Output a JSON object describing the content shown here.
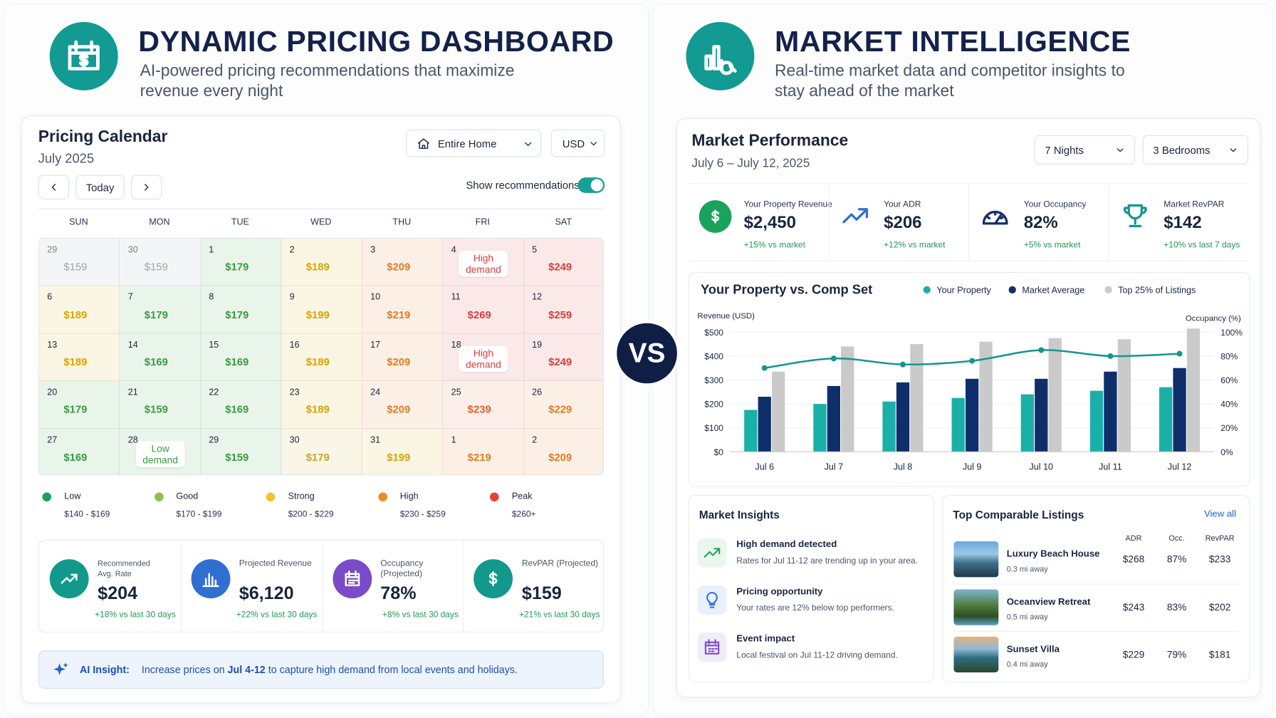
{
  "left": {
    "title": "DYNAMIC PRICING DASHBOARD",
    "subtitle": "AI-powered pricing recommendations that maximize revenue every night",
    "calendar": {
      "title": "Pricing Calendar",
      "month": "July 2025",
      "property_filter": "Entire Home",
      "currency": "USD",
      "today_button": "Today",
      "toggle_label": "Show recommendations",
      "toggle_on": true,
      "weekdays": [
        "SUN",
        "MON",
        "TUE",
        "WED",
        "THU",
        "FRI",
        "SAT"
      ],
      "cells": [
        {
          "day": "29",
          "price": "$159",
          "color": "#9ca3af"
        },
        {
          "day": "30",
          "price": "$159",
          "color": "#9ca3af"
        },
        {
          "day": "1",
          "price": "$179",
          "color": "#3b9b40"
        },
        {
          "day": "2",
          "price": "$189",
          "color": "#d9a400"
        },
        {
          "day": "3",
          "price": "$209",
          "color": "#e57a1e"
        },
        {
          "day": "4",
          "label": "High demand",
          "color": "#dd3b3b"
        },
        {
          "day": "5",
          "price": "$249",
          "color": "#dd3b3b"
        },
        {
          "day": "6",
          "price": "$189",
          "color": "#d9a400"
        },
        {
          "day": "7",
          "price": "$179",
          "color": "#3b9b40"
        },
        {
          "day": "8",
          "price": "$179",
          "color": "#3b9b40"
        },
        {
          "day": "9",
          "price": "$199",
          "color": "#d9a400"
        },
        {
          "day": "10",
          "price": "$219",
          "color": "#e57a1e"
        },
        {
          "day": "11",
          "price": "$269",
          "color": "#dd3b3b"
        },
        {
          "day": "12",
          "price": "$259",
          "color": "#dd3b3b"
        },
        {
          "day": "13",
          "price": "$189",
          "color": "#d9a400"
        },
        {
          "day": "14",
          "price": "$169",
          "color": "#3b9b40"
        },
        {
          "day": "15",
          "price": "$169",
          "color": "#3b9b40"
        },
        {
          "day": "16",
          "price": "$189",
          "color": "#d9a400"
        },
        {
          "day": "17",
          "price": "$209",
          "color": "#e57a1e"
        },
        {
          "day": "18",
          "label": "High demand",
          "color": "#dd3b3b"
        },
        {
          "day": "19",
          "price": "$249",
          "color": "#dd3b3b"
        },
        {
          "day": "20",
          "price": "$179",
          "color": "#3b9b40"
        },
        {
          "day": "21",
          "price": "$159",
          "color": "#3b9b40"
        },
        {
          "day": "22",
          "price": "$169",
          "color": "#3b9b40"
        },
        {
          "day": "23",
          "price": "$189",
          "color": "#d9a400"
        },
        {
          "day": "24",
          "price": "$209",
          "color": "#e57a1e"
        },
        {
          "day": "25",
          "price": "$239",
          "color": "#e0632a"
        },
        {
          "day": "26",
          "price": "$229",
          "color": "#e57a1e"
        },
        {
          "day": "27",
          "price": "$169",
          "color": "#3b9b40"
        },
        {
          "day": "28",
          "label": "Low demand",
          "color": "#3b9b40"
        },
        {
          "day": "29",
          "price": "$159",
          "color": "#3b9b40"
        },
        {
          "day": "30",
          "price": "$179",
          "color": "#c9a626"
        },
        {
          "day": "31",
          "price": "$199",
          "color": "#d9a400"
        },
        {
          "day": "1",
          "price": "$219",
          "color": "#e57a1e"
        },
        {
          "day": "2",
          "price": "$209",
          "color": "#e57a1e"
        }
      ]
    },
    "legend": [
      {
        "name": "Low",
        "range": "$140 - $169",
        "color": "#1aa35a"
      },
      {
        "name": "Good",
        "range": "$170 - $199",
        "color": "#8bc34a"
      },
      {
        "name": "Strong",
        "range": "$200 - $229",
        "color": "#f2c12e"
      },
      {
        "name": "High",
        "range": "$230 - $259",
        "color": "#f08a24"
      },
      {
        "name": "Peak",
        "range": "$260+",
        "color": "#e8413a"
      }
    ],
    "kpis": [
      {
        "label": "Recommended Avg. Rate",
        "value": "$204",
        "change": "+18% vs last 30 days",
        "color": "#13998c"
      },
      {
        "label": "Projected Revenue",
        "value": "$6,120",
        "change": "+22% vs last 30 days",
        "color": "#2f6fd0"
      },
      {
        "label": "Occupancy (Projected)",
        "value": "78%",
        "change": "+8% vs last 30 days",
        "color": "#7a4bc9"
      },
      {
        "label": "RevPAR (Projected)",
        "value": "$159",
        "change": "+21% vs last 30 days",
        "color": "#12998c"
      }
    ],
    "insight": {
      "label": "AI Insight:",
      "text_before": "Increase prices on ",
      "highlight": "Jul 4-12",
      "text_after": " to capture high demand from local events and holidays."
    }
  },
  "vs": "VS",
  "right": {
    "title": "MARKET INTELLIGENCE",
    "subtitle": "Real-time market data and competitor insights to stay ahead of the market",
    "performance": {
      "title": "Market Performance",
      "dates": "July 6 – July 12, 2025",
      "nights_filter": "7 Nights",
      "bedrooms_filter": "3 Bedrooms"
    },
    "kpis": [
      {
        "label": "Your Property Revenue",
        "value": "$2,450",
        "change": "+15% vs market",
        "color": "#1aa35a"
      },
      {
        "label": "Your ADR",
        "value": "$206",
        "change": "+12% vs market",
        "color": "#2f6fd0"
      },
      {
        "label": "Your Occupancy",
        "value": "82%",
        "change": "+5% vs market",
        "color": "#14306b"
      },
      {
        "label": "Market RevPAR",
        "value": "$142",
        "change": "+10% vs last 7 days",
        "color": "#13998c"
      }
    ],
    "chart": {
      "type": "bar",
      "title": "Your Property vs. Comp Set",
      "y_label": "Revenue (USD)",
      "y2_label": "Occupancy (%)",
      "categories": [
        "Jul 6",
        "Jul 7",
        "Jul 8",
        "Jul 9",
        "Jul 10",
        "Jul 11",
        "Jul 12"
      ],
      "series": [
        {
          "name": "Your Property",
          "color": "#1ab0a8",
          "values": [
            175,
            200,
            210,
            225,
            240,
            255,
            270
          ]
        },
        {
          "name": "Market Average",
          "color": "#0f2f6b",
          "values": [
            230,
            275,
            290,
            305,
            305,
            335,
            350
          ]
        },
        {
          "name": "Top 25% of Listings",
          "color": "#cacaca",
          "values": [
            335,
            440,
            450,
            460,
            475,
            470,
            515
          ]
        }
      ],
      "line": {
        "color": "#15958f",
        "axis": "y2",
        "values": [
          70,
          78,
          73,
          76,
          85,
          80,
          82
        ]
      },
      "ylim": [
        0,
        500
      ],
      "yticks": [
        {
          "value": 0,
          "label": "$0"
        },
        {
          "value": 100,
          "label": "$100"
        },
        {
          "value": 200,
          "label": "$200"
        },
        {
          "value": 300,
          "label": "$300"
        },
        {
          "value": 400,
          "label": "$400"
        },
        {
          "value": 500,
          "label": "$500"
        }
      ],
      "y2lim": [
        0,
        100
      ],
      "y2ticks": [
        {
          "value": 0,
          "label": "0%"
        },
        {
          "value": 20,
          "label": "20%"
        },
        {
          "value": 40,
          "label": "40%"
        },
        {
          "value": 60,
          "label": "60%"
        },
        {
          "value": 80,
          "label": "80%"
        },
        {
          "value": 100,
          "label": "100%"
        }
      ],
      "grid": true
    },
    "insights": {
      "title": "Market Insights",
      "items": [
        {
          "title": "High demand detected",
          "text": "Rates for Jul 11-12 are trending up in your area."
        },
        {
          "title": "Pricing opportunity",
          "text": "Your rates are 12% below top performers."
        },
        {
          "title": "Event impact",
          "text": "Local festival on Jul 11-12 driving demand."
        }
      ]
    },
    "comparables": {
      "title": "Top Comparable Listings",
      "link": "View all",
      "columns": [
        "ADR",
        "Occ.",
        "RevPAR"
      ],
      "rows": [
        {
          "name": "Luxury Beach House",
          "distance": "0.3 mi away",
          "adr": "$268",
          "occ": "87%",
          "revpar": "$233"
        },
        {
          "name": "Oceanview Retreat",
          "distance": "0.5 mi away",
          "adr": "$243",
          "occ": "83%",
          "revpar": "$202"
        },
        {
          "name": "Sunset Villa",
          "distance": "0.4 mi away",
          "adr": "$229",
          "occ": "79%",
          "revpar": "$181"
        }
      ]
    }
  }
}
